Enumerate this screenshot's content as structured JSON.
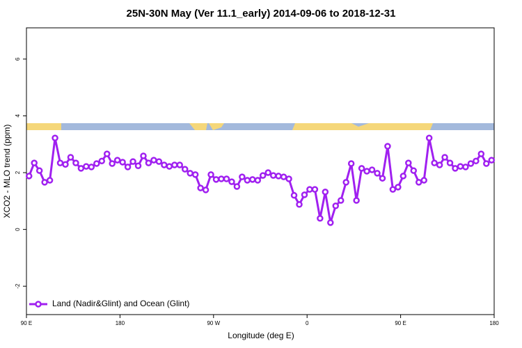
{
  "chart_data": {
    "type": "line",
    "title": "25N-30N May (Ver 11.1_early)   2014-09-06 to 2018-12-31",
    "x_label": "Longitude (deg E)",
    "y_label": "XCO2 - MLO trend (ppm)",
    "xlim": [
      90,
      540
    ],
    "ylim": [
      -3,
      7.1
    ],
    "xticks": [
      {
        "value": 90,
        "label": "90 E"
      },
      180,
      {
        "value": 270,
        "label": "90 W"
      },
      {
        "value": 360,
        "label": "0"
      },
      {
        "value": 450,
        "label": "90 E"
      },
      {
        "value": 540,
        "label": "180"
      }
    ],
    "yticks": [
      -2,
      0,
      2,
      4,
      6
    ],
    "legend": "bottom-left",
    "x": [
      92.5,
      97.5,
      102.5,
      107.5,
      112.5,
      117.5,
      122.5,
      127.5,
      132.5,
      137.5,
      142.5,
      147.5,
      152.5,
      157.5,
      162.5,
      167.5,
      172.5,
      177.5,
      182.5,
      187.5,
      192.5,
      197.5,
      202.5,
      207.5,
      212.5,
      217.5,
      222.5,
      227.5,
      232.5,
      237.5,
      242.5,
      247.5,
      252.5,
      257.5,
      262.5,
      267.5,
      272.5,
      277.5,
      282.5,
      287.5,
      292.5,
      297.5,
      302.5,
      307.5,
      312.5,
      317.5,
      322.5,
      327.5,
      332.5,
      337.5,
      342.5,
      347.5,
      352.5,
      357.5,
      362.5,
      367.5,
      372.5,
      377.5,
      382.5,
      387.5,
      392.5,
      397.5,
      402.5,
      407.5,
      412.5,
      417.5,
      422.5,
      427.5,
      432.5,
      437.5,
      442.5,
      447.5,
      452.5,
      457.5,
      462.5,
      467.5,
      472.5,
      477.5,
      482.5,
      487.5,
      492.5,
      497.5,
      502.5,
      507.5,
      512.5,
      517.5,
      522.5,
      527.5,
      532.5,
      537.5
    ],
    "series": [
      {
        "name": "Land (Nadir&Glint) and Ocean (Glint)",
        "color": "#a020f0",
        "values": [
          1.88,
          2.34,
          2.07,
          1.66,
          1.73,
          3.22,
          2.34,
          2.29,
          2.54,
          2.34,
          2.15,
          2.22,
          2.2,
          2.32,
          2.41,
          2.66,
          2.32,
          2.44,
          2.37,
          2.2,
          2.39,
          2.24,
          2.59,
          2.34,
          2.44,
          2.39,
          2.27,
          2.22,
          2.27,
          2.27,
          2.12,
          1.98,
          1.93,
          1.46,
          1.39,
          1.93,
          1.76,
          1.78,
          1.78,
          1.68,
          1.51,
          1.85,
          1.73,
          1.76,
          1.73,
          1.9,
          2.0,
          1.9,
          1.88,
          1.85,
          1.78,
          1.2,
          0.88,
          1.22,
          1.41,
          1.41,
          0.39,
          1.32,
          0.24,
          0.83,
          1.02,
          1.66,
          2.32,
          1.02,
          2.15,
          2.05,
          2.1,
          1.98,
          1.8,
          2.93,
          1.41,
          1.49,
          1.88,
          2.34,
          2.07,
          1.66,
          1.73,
          3.22,
          2.34,
          2.27,
          2.54,
          2.34,
          2.15,
          2.22,
          2.2,
          2.32,
          2.41,
          2.66,
          2.32,
          2.44
        ]
      }
    ]
  }
}
